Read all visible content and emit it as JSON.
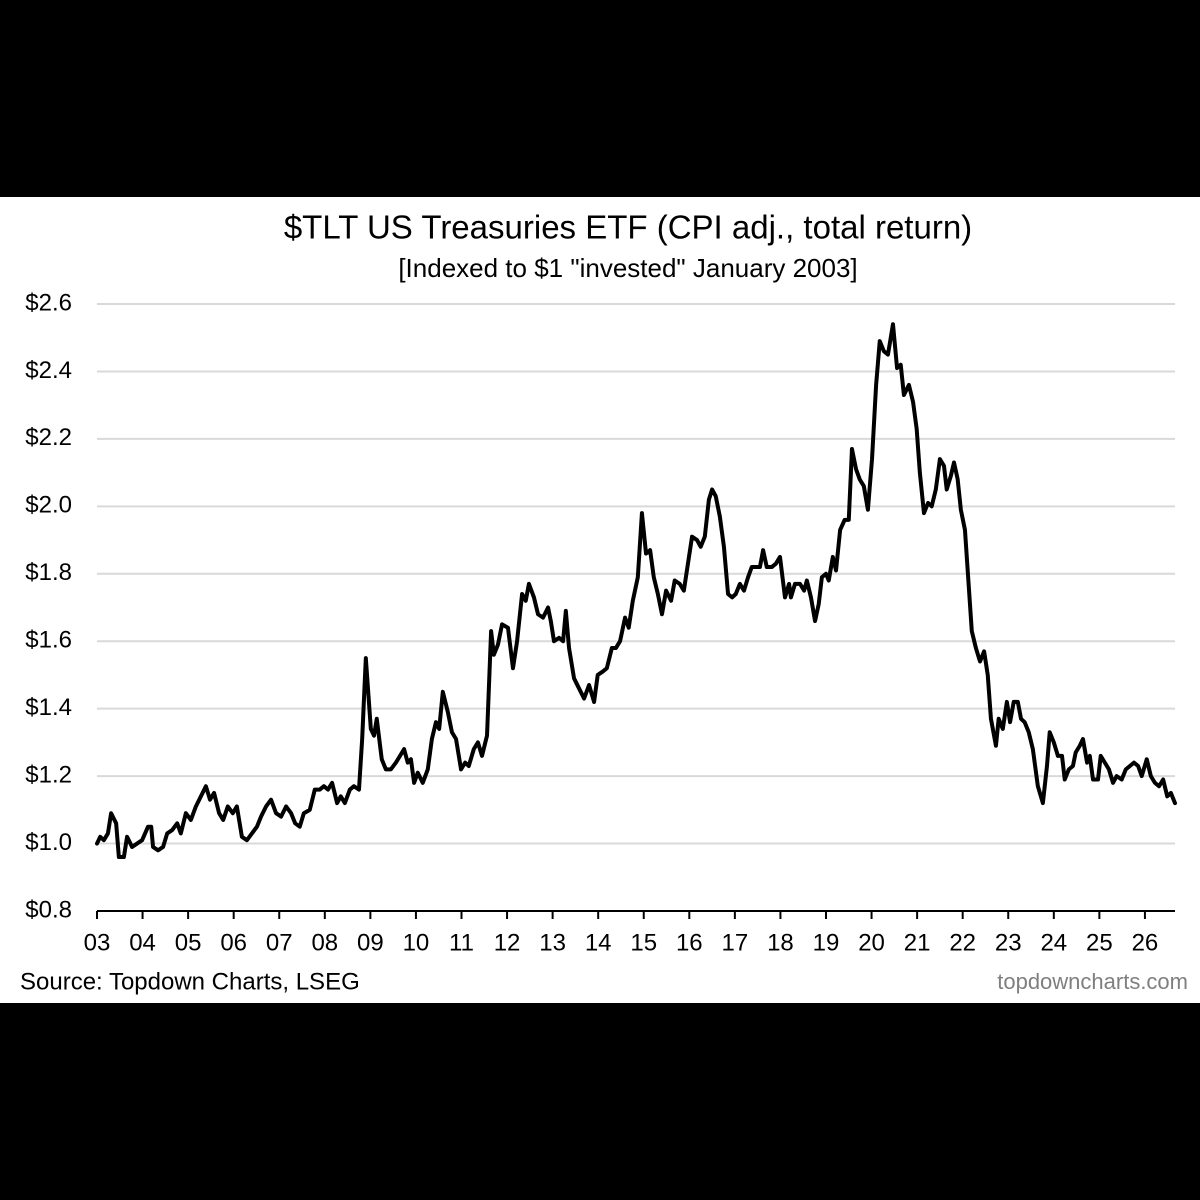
{
  "chart_data": {
    "type": "line",
    "title": "$TLT US Treasuries ETF (CPI adj., total return)",
    "subtitle": "[Indexed to $1 \"invested\" January 2003]",
    "source": "Source: Topdown Charts, LSEG",
    "watermark": "topdowncharts.com",
    "color": "#000000",
    "grid": true,
    "xlim": [
      2003,
      2026.66
    ],
    "ylim": [
      0.8,
      2.6
    ],
    "yticks": [
      {
        "value": 0.8,
        "label": "$0.8"
      },
      {
        "value": 1.0,
        "label": "$1.0"
      },
      {
        "value": 1.2,
        "label": "$1.2"
      },
      {
        "value": 1.4,
        "label": "$1.4"
      },
      {
        "value": 1.6,
        "label": "$1.6"
      },
      {
        "value": 1.8,
        "label": "$1.8"
      },
      {
        "value": 2.0,
        "label": "$2.0"
      },
      {
        "value": 2.2,
        "label": "$2.2"
      },
      {
        "value": 2.4,
        "label": "$2.4"
      },
      {
        "value": 2.6,
        "label": "$2.6"
      }
    ],
    "xticks": [
      {
        "value": 2003,
        "label": "03"
      },
      {
        "value": 2004,
        "label": "04"
      },
      {
        "value": 2005,
        "label": "05"
      },
      {
        "value": 2006,
        "label": "06"
      },
      {
        "value": 2007,
        "label": "07"
      },
      {
        "value": 2008,
        "label": "08"
      },
      {
        "value": 2009,
        "label": "09"
      },
      {
        "value": 2010,
        "label": "10"
      },
      {
        "value": 2011,
        "label": "11"
      },
      {
        "value": 2012,
        "label": "12"
      },
      {
        "value": 2013,
        "label": "13"
      },
      {
        "value": 2014,
        "label": "14"
      },
      {
        "value": 2015,
        "label": "15"
      },
      {
        "value": 2016,
        "label": "16"
      },
      {
        "value": 2017,
        "label": "17"
      },
      {
        "value": 2018,
        "label": "18"
      },
      {
        "value": 2019,
        "label": "19"
      },
      {
        "value": 2020,
        "label": "20"
      },
      {
        "value": 2021,
        "label": "21"
      },
      {
        "value": 2022,
        "label": "22"
      },
      {
        "value": 2023,
        "label": "23"
      },
      {
        "value": 2024,
        "label": "24"
      },
      {
        "value": 2025,
        "label": "25"
      },
      {
        "value": 2026,
        "label": "26"
      }
    ],
    "x": [
      2003.0,
      2003.07,
      2003.15,
      2003.24,
      2003.31,
      2003.42,
      2003.48,
      2003.59,
      2003.66,
      2003.77,
      2003.88,
      2003.99,
      2004.12,
      2004.19,
      2004.23,
      2004.34,
      2004.45,
      2004.54,
      2004.65,
      2004.76,
      2004.84,
      2004.95,
      2005.06,
      2005.17,
      2005.28,
      2005.39,
      2005.48,
      2005.57,
      2005.68,
      2005.77,
      2005.87,
      2005.98,
      2006.07,
      2006.18,
      2006.29,
      2006.4,
      2006.51,
      2006.6,
      2006.71,
      2006.82,
      2006.93,
      2007.04,
      2007.15,
      2007.26,
      2007.35,
      2007.45,
      2007.54,
      2007.67,
      2007.78,
      2007.89,
      2007.98,
      2008.07,
      2008.16,
      2008.27,
      2008.35,
      2008.44,
      2008.55,
      2008.64,
      2008.75,
      2008.82,
      2008.9,
      2009.01,
      2009.08,
      2009.14,
      2009.25,
      2009.34,
      2009.45,
      2009.56,
      2009.65,
      2009.74,
      2009.82,
      2009.89,
      2009.96,
      2010.04,
      2010.15,
      2010.26,
      2010.35,
      2010.44,
      2010.51,
      2010.59,
      2010.7,
      2010.79,
      2010.88,
      2010.99,
      2011.08,
      2011.16,
      2011.27,
      2011.36,
      2011.45,
      2011.56,
      2011.65,
      2011.71,
      2011.8,
      2011.89,
      2012.02,
      2012.13,
      2012.22,
      2012.33,
      2012.41,
      2012.48,
      2012.59,
      2012.68,
      2012.79,
      2012.9,
      2012.96,
      2013.03,
      2013.14,
      2013.23,
      2013.29,
      2013.36,
      2013.47,
      2013.58,
      2013.69,
      2013.8,
      2013.91,
      2013.99,
      2014.1,
      2014.19,
      2014.3,
      2014.39,
      2014.48,
      2014.59,
      2014.67,
      2014.76,
      2014.87,
      2014.96,
      2015.05,
      2015.14,
      2015.22,
      2015.31,
      2015.4,
      2015.49,
      2015.6,
      2015.68,
      2015.79,
      2015.88,
      2015.97,
      2016.06,
      2016.17,
      2016.25,
      2016.34,
      2016.43,
      2016.5,
      2016.58,
      2016.67,
      2016.76,
      2016.85,
      2016.94,
      2017.02,
      2017.11,
      2017.2,
      2017.29,
      2017.37,
      2017.46,
      2017.55,
      2017.62,
      2017.7,
      2017.81,
      2017.9,
      2017.99,
      2018.1,
      2018.19,
      2018.23,
      2018.32,
      2018.43,
      2018.52,
      2018.58,
      2018.67,
      2018.76,
      2018.84,
      2018.91,
      2019.0,
      2019.06,
      2019.15,
      2019.22,
      2019.31,
      2019.41,
      2019.5,
      2019.57,
      2019.66,
      2019.74,
      2019.83,
      2019.92,
      2020.01,
      2020.1,
      2020.18,
      2020.27,
      2020.36,
      2020.47,
      2020.56,
      2020.64,
      2020.71,
      2020.82,
      2020.91,
      2020.99,
      2021.06,
      2021.15,
      2021.24,
      2021.32,
      2021.41,
      2021.5,
      2021.59,
      2021.65,
      2021.74,
      2021.81,
      2021.89,
      2021.96,
      2022.05,
      2022.11,
      2022.2,
      2022.29,
      2022.38,
      2022.47,
      2022.55,
      2022.62,
      2022.73,
      2022.79,
      2022.88,
      2022.97,
      2023.04,
      2023.12,
      2023.21,
      2023.28,
      2023.36,
      2023.45,
      2023.54,
      2023.65,
      2023.76,
      2023.85,
      2023.91,
      2024.0,
      2024.09,
      2024.18,
      2024.24,
      2024.33,
      2024.42,
      2024.48,
      2024.57,
      2024.64,
      2024.73,
      2024.79,
      2024.86,
      2024.97,
      2025.03,
      2025.12,
      2025.21,
      2025.3,
      2025.38,
      2025.49,
      2025.58,
      2025.67,
      2025.76,
      2025.85,
      2025.93,
      2026.04,
      2026.13,
      2026.22,
      2026.31,
      2026.4,
      2026.49,
      2026.57,
      2026.66
    ],
    "values": [
      1.0,
      1.02,
      1.01,
      1.03,
      1.09,
      1.06,
      0.96,
      0.96,
      1.02,
      0.99,
      1.0,
      1.01,
      1.05,
      1.05,
      0.99,
      0.98,
      0.99,
      1.03,
      1.04,
      1.06,
      1.03,
      1.09,
      1.07,
      1.11,
      1.14,
      1.17,
      1.13,
      1.15,
      1.09,
      1.07,
      1.11,
      1.09,
      1.11,
      1.02,
      1.01,
      1.03,
      1.05,
      1.08,
      1.11,
      1.13,
      1.09,
      1.08,
      1.11,
      1.09,
      1.06,
      1.05,
      1.09,
      1.1,
      1.16,
      1.16,
      1.17,
      1.16,
      1.18,
      1.12,
      1.14,
      1.12,
      1.16,
      1.17,
      1.16,
      1.31,
      1.55,
      1.34,
      1.32,
      1.37,
      1.25,
      1.22,
      1.22,
      1.24,
      1.26,
      1.28,
      1.24,
      1.25,
      1.18,
      1.21,
      1.18,
      1.22,
      1.31,
      1.36,
      1.34,
      1.45,
      1.39,
      1.33,
      1.31,
      1.22,
      1.24,
      1.23,
      1.28,
      1.3,
      1.26,
      1.32,
      1.63,
      1.56,
      1.59,
      1.65,
      1.64,
      1.52,
      1.6,
      1.74,
      1.72,
      1.77,
      1.73,
      1.68,
      1.67,
      1.7,
      1.66,
      1.6,
      1.61,
      1.6,
      1.69,
      1.58,
      1.49,
      1.46,
      1.43,
      1.47,
      1.42,
      1.5,
      1.51,
      1.52,
      1.58,
      1.58,
      1.6,
      1.67,
      1.64,
      1.72,
      1.79,
      1.98,
      1.86,
      1.87,
      1.79,
      1.74,
      1.68,
      1.75,
      1.72,
      1.78,
      1.77,
      1.75,
      1.83,
      1.91,
      1.9,
      1.88,
      1.91,
      2.02,
      2.05,
      2.03,
      1.97,
      1.88,
      1.74,
      1.73,
      1.74,
      1.77,
      1.75,
      1.79,
      1.82,
      1.82,
      1.82,
      1.87,
      1.82,
      1.82,
      1.83,
      1.85,
      1.73,
      1.77,
      1.73,
      1.77,
      1.77,
      1.75,
      1.78,
      1.73,
      1.66,
      1.71,
      1.79,
      1.8,
      1.78,
      1.85,
      1.81,
      1.93,
      1.96,
      1.96,
      2.17,
      2.11,
      2.08,
      2.06,
      1.99,
      2.14,
      2.36,
      2.49,
      2.46,
      2.45,
      2.54,
      2.41,
      2.42,
      2.33,
      2.36,
      2.31,
      2.23,
      2.1,
      1.98,
      2.01,
      2.0,
      2.05,
      2.14,
      2.12,
      2.05,
      2.09,
      2.13,
      2.08,
      1.99,
      1.93,
      1.81,
      1.63,
      1.58,
      1.54,
      1.57,
      1.5,
      1.37,
      1.29,
      1.37,
      1.34,
      1.42,
      1.36,
      1.42,
      1.42,
      1.37,
      1.36,
      1.33,
      1.28,
      1.17,
      1.12,
      1.23,
      1.33,
      1.3,
      1.26,
      1.26,
      1.19,
      1.22,
      1.23,
      1.27,
      1.29,
      1.31,
      1.24,
      1.26,
      1.19,
      1.19,
      1.26,
      1.24,
      1.22,
      1.18,
      1.2,
      1.19,
      1.22,
      1.23,
      1.24,
      1.23,
      1.2,
      1.25,
      1.2,
      1.18,
      1.17,
      1.19,
      1.14,
      1.15,
      1.12
    ]
  }
}
